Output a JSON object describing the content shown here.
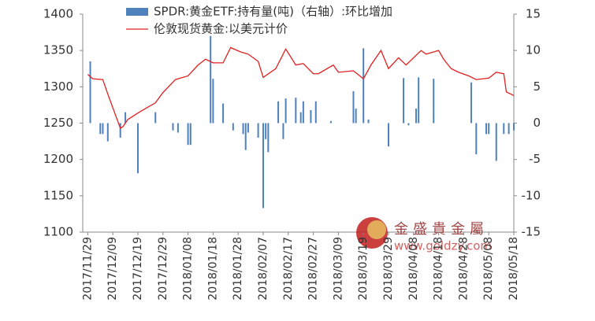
{
  "chart_data": {
    "type": "bar-line",
    "xlim": [
      "2017/11/27",
      "2018/05/18"
    ],
    "xticks": [
      "2017/11/29",
      "2017/12/09",
      "2017/12/19",
      "2017/12/29",
      "2018/01/08",
      "2018/01/18",
      "2018/01/28",
      "2018/02/07",
      "2018/02/17",
      "2018/02/27",
      "2018/03/09",
      "2018/03/19",
      "2018/03/29",
      "2018/04/08",
      "2018/04/18",
      "2018/04/28",
      "2018/05/08",
      "2018/05/18"
    ],
    "ylim": [
      1100,
      1400
    ],
    "yticks": [
      1100,
      1150,
      1200,
      1250,
      1300,
      1350,
      1400
    ],
    "y2lim": [
      -15,
      15
    ],
    "y2ticks": [
      -15,
      -10,
      -5,
      0,
      5,
      10,
      15
    ],
    "legend": "top",
    "watermark": {
      "name": "金盛貴金屬",
      "url": "www.goldzy.com"
    },
    "series": [
      {
        "name": "SPDR:黄金ETF:持有量(吨)（右轴）:环比增加",
        "type": "bar",
        "axis": "y2",
        "color": "#4f81bd",
        "x": [
          "2017/11/30",
          "2017/12/04",
          "2017/12/05",
          "2017/12/07",
          "2017/12/12",
          "2017/12/14",
          "2017/12/19",
          "2017/12/26",
          "2018/01/02",
          "2018/01/04",
          "2018/01/08",
          "2018/01/09",
          "2018/01/17",
          "2018/01/18",
          "2018/01/22",
          "2018/01/26",
          "2018/01/30",
          "2018/01/31",
          "2018/02/01",
          "2018/02/05",
          "2018/02/07",
          "2018/02/08",
          "2018/02/09",
          "2018/02/13",
          "2018/02/15",
          "2018/02/16",
          "2018/02/20",
          "2018/02/22",
          "2018/02/23",
          "2018/02/26",
          "2018/02/28",
          "2018/03/06",
          "2018/03/15",
          "2018/03/16",
          "2018/03/19",
          "2018/03/21",
          "2018/03/29",
          "2018/04/04",
          "2018/04/06",
          "2018/04/09",
          "2018/04/10",
          "2018/04/16",
          "2018/05/01",
          "2018/05/03",
          "2018/05/07",
          "2018/05/08",
          "2018/05/11",
          "2018/05/14",
          "2018/05/16",
          "2018/05/18"
        ],
        "values": [
          8.5,
          -1.5,
          -1.5,
          -2.5,
          -2,
          1.5,
          -6.9,
          1.5,
          -1,
          -1.3,
          -3,
          -3,
          12,
          6.1,
          2.7,
          -1,
          -1.5,
          -3.7,
          -1.3,
          -2,
          -11.7,
          -2.2,
          -4,
          3,
          -2.2,
          3.4,
          3.5,
          1.5,
          3,
          1.8,
          3,
          0.3,
          4.4,
          2,
          10.3,
          0.5,
          -3.2,
          6.2,
          -0.3,
          2,
          6.3,
          6.1,
          5.6,
          -4.3,
          -1.5,
          -1.5,
          -5.2,
          -1.5,
          -1.5,
          -1
        ]
      },
      {
        "name": "伦敦现货黄金:以美元计价",
        "type": "line",
        "axis": "y",
        "color": "#e02020",
        "x": [
          "2017/11/29",
          "2017/12/01",
          "2017/12/05",
          "2017/12/07",
          "2017/12/12",
          "2017/12/13",
          "2017/12/15",
          "2017/12/20",
          "2017/12/26",
          "2017/12/29",
          "2018/01/03",
          "2018/01/08",
          "2018/01/12",
          "2018/01/15",
          "2018/01/18",
          "2018/01/22",
          "2018/01/25",
          "2018/01/29",
          "2018/02/01",
          "2018/02/05",
          "2018/02/07",
          "2018/02/12",
          "2018/02/16",
          "2018/02/20",
          "2018/02/23",
          "2018/02/27",
          "2018/03/01",
          "2018/03/07",
          "2018/03/09",
          "2018/03/15",
          "2018/03/19",
          "2018/03/22",
          "2018/03/26",
          "2018/03/29",
          "2018/04/02",
          "2018/04/05",
          "2018/04/11",
          "2018/04/13",
          "2018/04/18",
          "2018/04/20",
          "2018/04/23",
          "2018/04/26",
          "2018/04/30",
          "2018/05/03",
          "2018/05/08",
          "2018/05/11",
          "2018/05/14",
          "2018/05/15",
          "2018/05/18"
        ],
        "values": [
          1317,
          1311,
          1310,
          1290,
          1243,
          1245,
          1255,
          1266,
          1278,
          1292,
          1310,
          1315,
          1330,
          1338,
          1333,
          1333,
          1354,
          1348,
          1345,
          1335,
          1313,
          1325,
          1352,
          1330,
          1332,
          1318,
          1318,
          1330,
          1320,
          1322,
          1311,
          1330,
          1350,
          1325,
          1340,
          1330,
          1350,
          1345,
          1350,
          1338,
          1325,
          1320,
          1315,
          1310,
          1312,
          1320,
          1318,
          1293,
          1288
        ]
      }
    ]
  }
}
